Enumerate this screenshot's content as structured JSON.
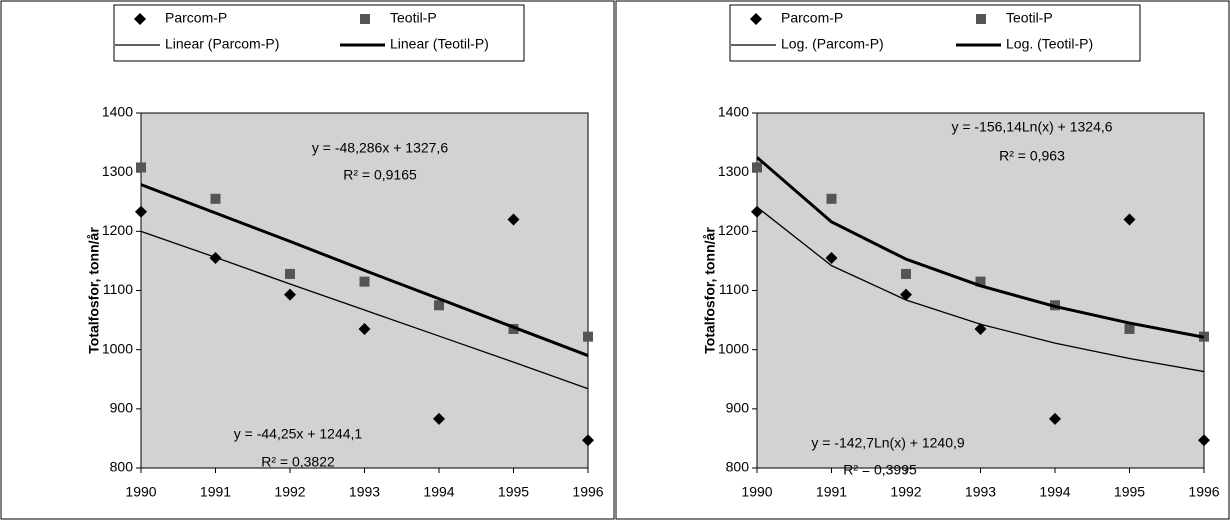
{
  "chart_data": [
    {
      "type": "scatter",
      "y_label": "Totalfosfor, tonn/år",
      "x": [
        1990,
        1991,
        1992,
        1993,
        1994,
        1995,
        1996
      ],
      "xlim": [
        1990,
        1996
      ],
      "xticks": [
        1990,
        1991,
        1992,
        1993,
        1994,
        1995,
        1996
      ],
      "ylim": [
        800,
        1400
      ],
      "yticks": [
        800,
        900,
        1000,
        1100,
        1200,
        1300,
        1400
      ],
      "grid": false,
      "plot_background": "#d2d2d2",
      "series": [
        {
          "name": "Parcom-P",
          "color": "#000000",
          "marker": "diamond",
          "values": [
            1233,
            1155,
            1093,
            1035,
            883,
            1220,
            847
          ]
        },
        {
          "name": "Teotil-P",
          "color": "#555555",
          "marker": "square",
          "values": [
            1308,
            1255,
            1128,
            1115,
            1075,
            1035,
            1022
          ]
        },
        {
          "name": "Linear (Parcom-P)",
          "color": "#000000",
          "line_width": 1.3,
          "values": [
            1200,
            1156,
            1111,
            1067,
            1023,
            979,
            934
          ]
        },
        {
          "name": "Linear (Teotil-P)",
          "color": "#000000",
          "line_width": 3,
          "values": [
            1279,
            1231,
            1183,
            1134,
            1086,
            1038,
            990
          ]
        }
      ],
      "annotations": [
        "y = -48,286x + 1327,6",
        "R² = 0,9165",
        "y = -44,25x + 1244,1",
        "R² = 0,3822"
      ]
    },
    {
      "type": "scatter",
      "y_label": "Totalfosfor, tonn/år",
      "x": [
        1990,
        1991,
        1992,
        1993,
        1994,
        1995,
        1996
      ],
      "xlim": [
        1990,
        1996
      ],
      "xticks": [
        1990,
        1991,
        1992,
        1993,
        1994,
        1995,
        1996
      ],
      "ylim": [
        800,
        1400
      ],
      "yticks": [
        800,
        900,
        1000,
        1100,
        1200,
        1300,
        1400
      ],
      "grid": false,
      "plot_background": "#d2d2d2",
      "series": [
        {
          "name": "Parcom-P",
          "color": "#000000",
          "marker": "diamond",
          "values": [
            1233,
            1155,
            1093,
            1035,
            883,
            1220,
            847
          ]
        },
        {
          "name": "Teotil-P",
          "color": "#555555",
          "marker": "square",
          "values": [
            1308,
            1255,
            1128,
            1115,
            1075,
            1035,
            1022
          ]
        },
        {
          "name": "Log. (Parcom-P)",
          "color": "#000000",
          "line_width": 1.3,
          "values": [
            1241,
            1142,
            1084,
            1043,
            1011,
            985,
            963
          ]
        },
        {
          "name": "Log. (Teotil-P)",
          "color": "#000000",
          "line_width": 3,
          "values": [
            1325,
            1216,
            1153,
            1108,
            1073,
            1045,
            1021
          ]
        }
      ],
      "annotations": [
        "y = -156,14Ln(x) + 1324,6",
        "R² = 0,963",
        "y = -142,7Ln(x) + 1240,9",
        "R² = 0,3995"
      ]
    }
  ]
}
